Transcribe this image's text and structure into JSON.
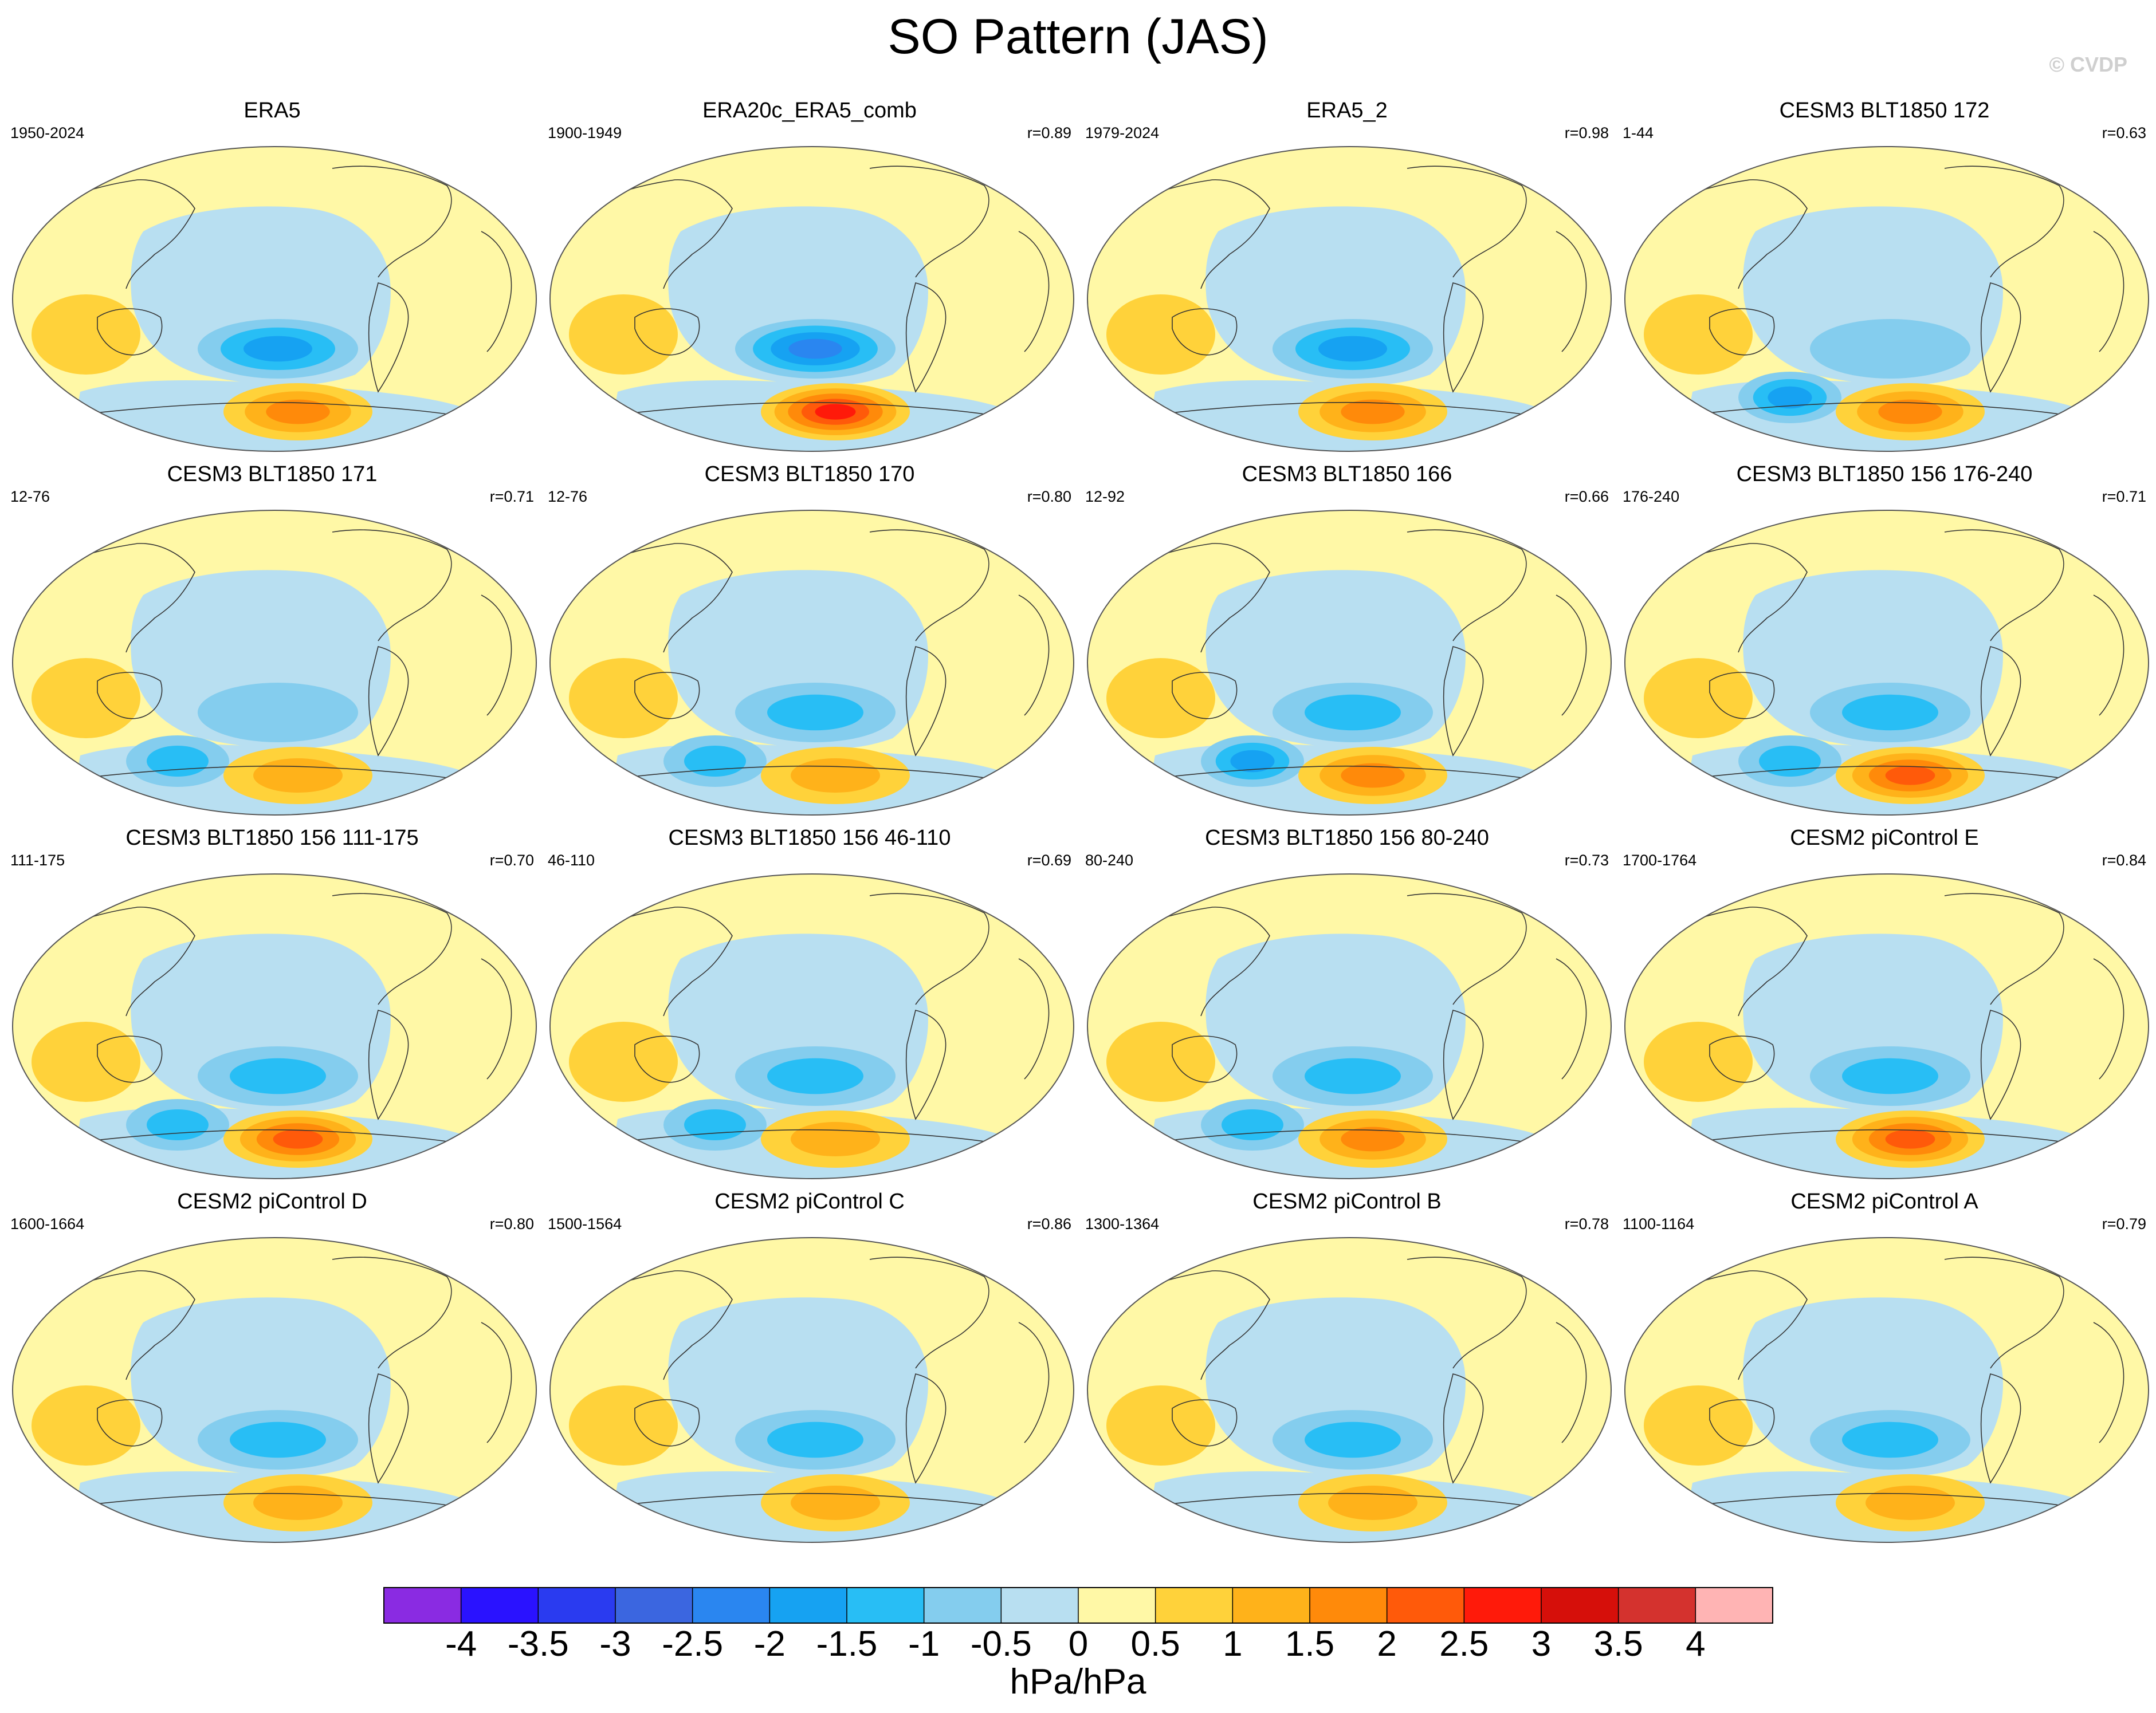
{
  "title": "SO Pattern (JAS)",
  "credit": "© CVDP",
  "units": "hPa/hPa",
  "chart_data": {
    "type": "heatmap",
    "description_type": "map-panels",
    "colorbar": {
      "labels": [
        "-4",
        "-3.5",
        "-3",
        "-2.5",
        "-2",
        "-1.5",
        "-1",
        "-0.5",
        "0",
        "0.5",
        "1",
        "1.5",
        "2",
        "2.5",
        "3",
        "3.5",
        "4"
      ],
      "levels": [
        -4,
        -3.5,
        -3,
        -2.5,
        -2,
        -1.5,
        -1,
        -0.5,
        0,
        0.5,
        1,
        1.5,
        2,
        2.5,
        3,
        3.5,
        4
      ],
      "colors": [
        "#8a2be2",
        "#2a12ff",
        "#2a3bf0",
        "#3b66e0",
        "#2a86f0",
        "#16a2f2",
        "#28bef5",
        "#84cdee",
        "#b8dff1",
        "#fff8a6",
        "#ffd23a",
        "#ffb21a",
        "#ff8a0a",
        "#ff5a0a",
        "#ff1a0a",
        "#d60f0a",
        "#d4322e",
        "#ffb4b4"
      ]
    },
    "panels": [
      {
        "title": "ERA5",
        "period": "1950-2024",
        "r": "",
        "pacific_low": -2.0,
        "south_high": 2.0,
        "west_low": -0.5
      },
      {
        "title": "ERA20c_ERA5_comb",
        "period": "1900-1949",
        "r": "r=0.89",
        "pacific_low": -2.5,
        "south_high": 3.0,
        "west_low": -0.5
      },
      {
        "title": "ERA5_2",
        "period": "1979-2024",
        "r": "r=0.98",
        "pacific_low": -2.0,
        "south_high": 2.0,
        "west_low": -0.5
      },
      {
        "title": "CESM3 BLT1850 172",
        "period": "1-44",
        "r": "r=0.63",
        "pacific_low": -1.0,
        "south_high": 2.0,
        "west_low": -2.0
      },
      {
        "title": "CESM3 BLT1850 171",
        "period": "12-76",
        "r": "r=0.71",
        "pacific_low": -1.0,
        "south_high": 1.5,
        "west_low": -1.5
      },
      {
        "title": "CESM3 BLT1850 170",
        "period": "12-76",
        "r": "r=0.80",
        "pacific_low": -1.5,
        "south_high": 1.5,
        "west_low": -1.5
      },
      {
        "title": "CESM3 BLT1850 166",
        "period": "12-92",
        "r": "r=0.66",
        "pacific_low": -1.5,
        "south_high": 2.0,
        "west_low": -2.0
      },
      {
        "title": "CESM3 BLT1850 156 176-240",
        "period": "176-240",
        "r": "r=0.71",
        "pacific_low": -1.5,
        "south_high": 2.5,
        "west_low": -1.5
      },
      {
        "title": "CESM3 BLT1850 156 111-175",
        "period": "111-175",
        "r": "r=0.70",
        "pacific_low": -1.5,
        "south_high": 2.5,
        "west_low": -1.5
      },
      {
        "title": "CESM3 BLT1850 156 46-110",
        "period": "46-110",
        "r": "r=0.69",
        "pacific_low": -1.5,
        "south_high": 1.5,
        "west_low": -1.5
      },
      {
        "title": "CESM3 BLT1850 156 80-240",
        "period": "80-240",
        "r": "r=0.73",
        "pacific_low": -1.5,
        "south_high": 2.0,
        "west_low": -1.5
      },
      {
        "title": "CESM2 piControl E",
        "period": "1700-1764",
        "r": "r=0.84",
        "pacific_low": -1.5,
        "south_high": 2.5,
        "west_low": -0.5
      },
      {
        "title": "CESM2 piControl D",
        "period": "1600-1664",
        "r": "r=0.80",
        "pacific_low": -1.5,
        "south_high": 1.5,
        "west_low": -0.5
      },
      {
        "title": "CESM2 piControl C",
        "period": "1500-1564",
        "r": "r=0.86",
        "pacific_low": -1.5,
        "south_high": 1.5,
        "west_low": -0.5
      },
      {
        "title": "CESM2 piControl B",
        "period": "1300-1364",
        "r": "r=0.78",
        "pacific_low": -1.5,
        "south_high": 1.5,
        "west_low": -0.5
      },
      {
        "title": "CESM2 piControl A",
        "period": "1100-1164",
        "r": "r=0.79",
        "pacific_low": -1.5,
        "south_high": 1.5,
        "west_low": -0.5
      }
    ]
  }
}
